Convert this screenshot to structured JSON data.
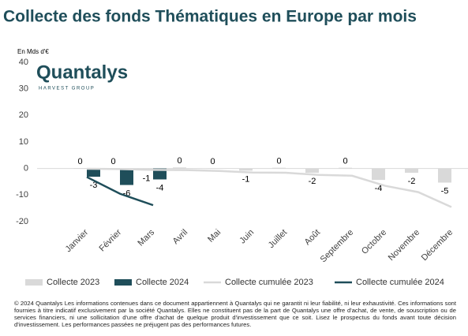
{
  "chart_data": {
    "type": "bar",
    "title": "Collecte des fonds Thématiques en Europe par mois",
    "y_label": "En Mds d'€",
    "logo": {
      "name": "Quantalys",
      "tagline": "HARVEST GROUP"
    },
    "categories": [
      "Janvier",
      "Février",
      "Mars",
      "Avril",
      "Mai",
      "Juin",
      "Juillet",
      "Août",
      "Septembre",
      "Octobre",
      "Novembre",
      "Décembre"
    ],
    "series": [
      {
        "name": "Collecte 2023",
        "type": "bar",
        "color": "#d9d9d9",
        "values": [
          0.2,
          0.1,
          -0.6,
          0.4,
          0.1,
          -0.8,
          0.3,
          -1.6,
          0.3,
          -4.3,
          -1.6,
          -5.3
        ],
        "value_labels": [
          "0",
          "0",
          "-1",
          "0",
          "0",
          "-1",
          "0",
          "-2",
          "0",
          "-4",
          "-2",
          "-5"
        ]
      },
      {
        "name": "Collecte 2024",
        "type": "bar",
        "color": "#1f4e5a",
        "values": [
          -3.1,
          -6.2,
          -4.1,
          null,
          null,
          null,
          null,
          null,
          null,
          null,
          null,
          null
        ],
        "value_labels": [
          "-3",
          "-6",
          "-4",
          null,
          null,
          null,
          null,
          null,
          null,
          null,
          null,
          null
        ]
      },
      {
        "name": "Collecte cumulée 2023",
        "type": "line",
        "color": "#d9d9d9",
        "values": [
          -0.1,
          -0.2,
          -0.5,
          -0.6,
          -0.9,
          -1.5,
          -1.6,
          -2.4,
          -2.7,
          -6.5,
          -8.9,
          -14.5
        ]
      },
      {
        "name": "Collecte cumulée 2024",
        "type": "line",
        "color": "#1f4e5a",
        "values": [
          -3.2,
          -9.5,
          -13.8,
          null,
          null,
          null,
          null,
          null,
          null,
          null,
          null,
          null
        ]
      }
    ],
    "ylim": [
      -20,
      40
    ],
    "yticks": [
      -20,
      -10,
      0,
      10,
      20,
      30,
      40
    ],
    "grid": false,
    "footer": "© 2024 Quantalys Les informations contenues dans ce document appartiennent à Quantalys qui ne garantit ni leur fiabilité, ni leur exhaustivité. Ces informations sont fournies à titre indicatif exclusivement par la société Quantalys. Elles ne constituent pas de la part de Quantalys une offre d'achat, de vente, de souscription ou de services financiers, ni une sollicitation d'une offre d'achat de quelque produit d'investissement que ce soit. Lisez le prospectus du fonds avant toute décision d'investissement. Les performances passées ne préjugent pas des performances futures."
  }
}
